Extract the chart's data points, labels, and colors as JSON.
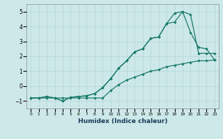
{
  "title": "",
  "xlabel": "Humidex (Indice chaleur)",
  "ylabel": "",
  "background_color": "#cde8e8",
  "grid_color": "#b8d8d8",
  "line_color": "#1a7a6a",
  "xlim": [
    -0.5,
    23.5
  ],
  "ylim": [
    -1.5,
    5.5
  ],
  "xticks": [
    0,
    1,
    2,
    3,
    4,
    5,
    6,
    7,
    8,
    9,
    10,
    11,
    12,
    13,
    14,
    15,
    16,
    17,
    18,
    19,
    20,
    21,
    22,
    23
  ],
  "yticks": [
    -1,
    0,
    1,
    2,
    3,
    4,
    5
  ],
  "line1_x": [
    0,
    1,
    2,
    3,
    4,
    5,
    6,
    7,
    8,
    9,
    10,
    11,
    12,
    13,
    14,
    15,
    16,
    17,
    18,
    19,
    20,
    21,
    22,
    23
  ],
  "line1_y": [
    -0.8,
    -0.8,
    -0.8,
    -0.8,
    -0.8,
    -0.8,
    -0.8,
    -0.8,
    -0.8,
    -0.8,
    -0.3,
    0.1,
    0.4,
    0.6,
    0.8,
    1.0,
    1.1,
    1.3,
    1.4,
    1.5,
    1.6,
    1.7,
    1.7,
    1.75
  ],
  "line2_x": [
    0,
    1,
    2,
    3,
    4,
    5,
    6,
    7,
    8,
    9,
    10,
    11,
    12,
    13,
    14,
    15,
    16,
    17,
    18,
    19,
    20,
    21,
    22,
    23
  ],
  "line2_y": [
    -0.8,
    -0.8,
    -0.7,
    -0.8,
    -1.0,
    -0.75,
    -0.7,
    -0.65,
    -0.5,
    -0.1,
    0.5,
    1.2,
    1.7,
    2.3,
    2.5,
    3.2,
    3.3,
    4.2,
    4.3,
    5.0,
    4.8,
    2.2,
    2.2,
    2.2
  ],
  "line3_x": [
    0,
    1,
    2,
    3,
    4,
    5,
    6,
    7,
    8,
    9,
    10,
    11,
    12,
    13,
    14,
    15,
    16,
    17,
    18,
    19,
    20,
    21,
    22,
    23
  ],
  "line3_y": [
    -0.8,
    -0.8,
    -0.7,
    -0.8,
    -1.0,
    -0.75,
    -0.7,
    -0.65,
    -0.5,
    -0.1,
    0.5,
    1.2,
    1.7,
    2.3,
    2.5,
    3.2,
    3.3,
    4.2,
    4.9,
    5.0,
    3.6,
    2.6,
    2.5,
    1.75
  ]
}
